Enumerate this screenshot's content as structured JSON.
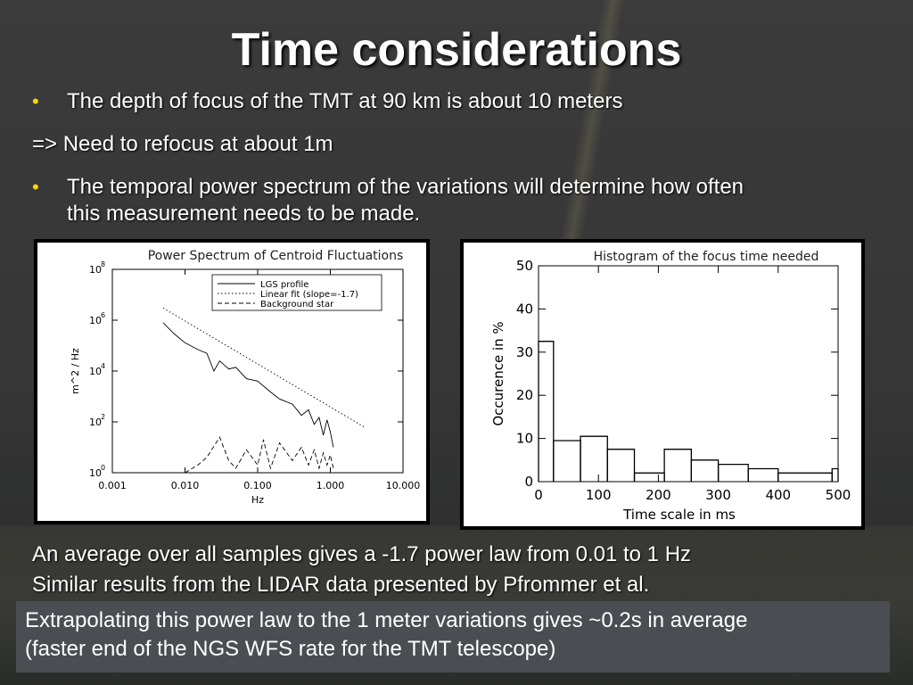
{
  "slide": {
    "title": "Time considerations",
    "bullet_1": "The depth of focus of the TMT at 90 km is about 10 meters",
    "line_2": "=> Need to refocus at about 1m",
    "bullet_3_line_1": "The temporal power spectrum of the variations will determine how often",
    "bullet_3_line_2": "this measurement needs to be made.",
    "bullet_glyph": "•",
    "caption_1": "An average over all samples gives a -1.7 power law from 0.01 to 1 Hz",
    "caption_2": "Similar results from the LIDAR data presented by Pfrommer et al.",
    "box_line_1": "Extrapolating this power law to the 1 meter variations gives ~0.2s in average",
    "box_line_2": "(faster end of the NGS WFS rate for the TMT telescope)"
  },
  "colors": {
    "bullet": "#ffd500",
    "box": "#4a4d52"
  },
  "chart_data": [
    {
      "type": "line",
      "title": "Power Spectrum of Centroid Fluctuations",
      "xlabel": "Hz",
      "ylabel": "m^2 / Hz",
      "xscale": "log",
      "yscale": "log",
      "xlim": [
        0.001,
        10
      ],
      "ylim": [
        1,
        100000000
      ],
      "xticks": [
        "0.001",
        "0.010",
        "0.100",
        "1.000",
        "10.000"
      ],
      "yticks": [
        {
          "base": "10",
          "exp": "0"
        },
        {
          "base": "10",
          "exp": "2"
        },
        {
          "base": "10",
          "exp": "4"
        },
        {
          "base": "10",
          "exp": "6"
        },
        {
          "base": "10",
          "exp": "8"
        }
      ],
      "legend_position": "top-right",
      "series": [
        {
          "name": "LGS profile",
          "style": "solid",
          "x": [
            0.005,
            0.007,
            0.01,
            0.015,
            0.02,
            0.025,
            0.03,
            0.04,
            0.05,
            0.07,
            0.1,
            0.15,
            0.2,
            0.3,
            0.4,
            0.5,
            0.6,
            0.7,
            0.8,
            0.9,
            1.0,
            1.1
          ],
          "y": [
            800000,
            300000,
            130000,
            70000,
            50000,
            10000,
            25000,
            12000,
            14000,
            5000,
            4000,
            1500,
            800,
            500,
            180,
            300,
            80,
            150,
            30,
            120,
            40,
            10
          ]
        },
        {
          "name": "Linear fit (slope=-1.7)",
          "style": "dotted",
          "x": [
            0.005,
            3.0
          ],
          "y": [
            3000000,
            60
          ]
        },
        {
          "name": "Background star",
          "style": "dashed",
          "x": [
            0.01,
            0.015,
            0.02,
            0.03,
            0.04,
            0.05,
            0.07,
            0.1,
            0.12,
            0.15,
            0.2,
            0.3,
            0.4,
            0.5,
            0.6,
            0.7,
            0.8,
            0.9,
            1.0,
            1.1
          ],
          "y": [
            1,
            2,
            4,
            25,
            3,
            1.5,
            8,
            2,
            20,
            1.5,
            15,
            3,
            10,
            2,
            8,
            1.5,
            6,
            2,
            5,
            1.5
          ]
        }
      ]
    },
    {
      "type": "bar",
      "title": "Histogram of the focus time needed",
      "xlabel": "Time scale in ms",
      "ylabel": "Occurence in %",
      "xlim": [
        0,
        500
      ],
      "ylim": [
        0,
        50
      ],
      "xticks": [
        "0",
        "100",
        "200",
        "300",
        "400",
        "500"
      ],
      "yticks": [
        "0",
        "10",
        "20",
        "30",
        "40",
        "50"
      ],
      "bins": [
        {
          "x0": 0,
          "x1": 25,
          "value": 32.5
        },
        {
          "x0": 25,
          "x1": 70,
          "value": 9.5
        },
        {
          "x0": 70,
          "x1": 115,
          "value": 10.5
        },
        {
          "x0": 115,
          "x1": 160,
          "value": 7.5
        },
        {
          "x0": 160,
          "x1": 210,
          "value": 2.0
        },
        {
          "x0": 210,
          "x1": 255,
          "value": 7.5
        },
        {
          "x0": 255,
          "x1": 300,
          "value": 5.0
        },
        {
          "x0": 300,
          "x1": 350,
          "value": 4.0
        },
        {
          "x0": 350,
          "x1": 400,
          "value": 3.0
        },
        {
          "x0": 400,
          "x1": 490,
          "value": 2.0
        },
        {
          "x0": 490,
          "x1": 500,
          "value": 3.0
        }
      ]
    }
  ]
}
